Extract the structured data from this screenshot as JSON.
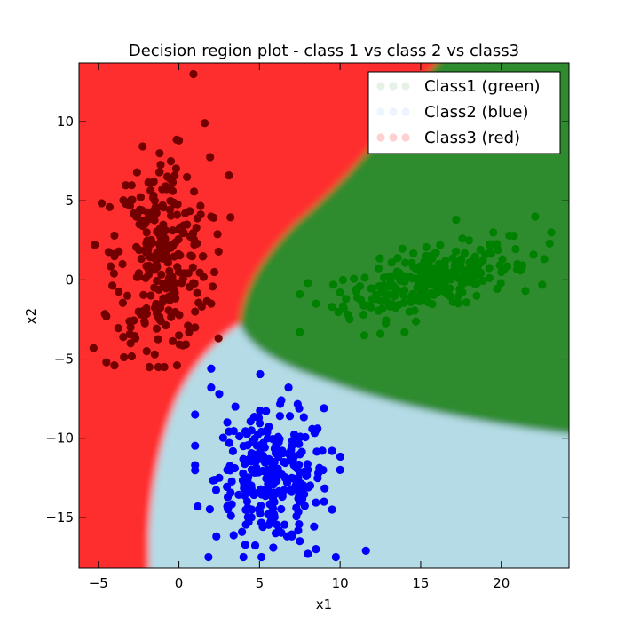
{
  "chart_data": {
    "type": "scatter",
    "title": "Decision region plot - class 1 vs class 2 vs class3",
    "xlabel": "x1",
    "ylabel": "x2",
    "xlim": [
      -6.2,
      24.2
    ],
    "ylim": [
      -18.2,
      13.7
    ],
    "xticks": [
      -5,
      0,
      5,
      10,
      15,
      20
    ],
    "yticks": [
      -15,
      -10,
      -5,
      0,
      5,
      10
    ],
    "xtick_labels": [
      "−5",
      "0",
      "5",
      "10",
      "15",
      "20"
    ],
    "ytick_labels": [
      "−15",
      "−10",
      "−5",
      "0",
      "5",
      "10"
    ],
    "grid": false,
    "legend_position": "top-right",
    "regions": [
      {
        "class": "Class1",
        "color": "#2e8b2e"
      },
      {
        "class": "Class2",
        "color": "#b4dbe6"
      },
      {
        "class": "Class3",
        "color": "#ff2f2f"
      }
    ],
    "series": [
      {
        "name": "Class1 (green)",
        "color": "#008000",
        "legend_marker_color": "#e6f2e6",
        "center": [
          15.5,
          0.0
        ],
        "x_range": [
          7.5,
          23.0
        ],
        "y_range": [
          -4.0,
          4.0
        ],
        "points": [
          [
            7.5,
            -3.3
          ],
          [
            8.0,
            -0.2
          ],
          [
            8.5,
            -1.5
          ],
          [
            9.5,
            -1.7
          ],
          [
            10.0,
            -0.8
          ],
          [
            10.5,
            -2.2
          ],
          [
            11.0,
            -0.6
          ],
          [
            11.5,
            -3.5
          ],
          [
            12.0,
            -1.2
          ],
          [
            12.5,
            -3.4
          ],
          [
            13.0,
            -0.4
          ],
          [
            13.2,
            1.1
          ],
          [
            14.0,
            -3.3
          ],
          [
            14.3,
            -2.0
          ],
          [
            14.5,
            -0.9
          ],
          [
            15.0,
            0.5
          ],
          [
            15.2,
            -1.2
          ],
          [
            15.5,
            1.5
          ],
          [
            15.8,
            0.2
          ],
          [
            16.0,
            -0.5
          ],
          [
            16.2,
            2.2
          ],
          [
            16.5,
            0.8
          ],
          [
            17.0,
            -1.4
          ],
          [
            17.2,
            3.8
          ],
          [
            17.5,
            1.2
          ],
          [
            17.8,
            0.0
          ],
          [
            18.0,
            2.5
          ],
          [
            18.5,
            -0.2
          ],
          [
            19.0,
            1.6
          ],
          [
            19.5,
            3.0
          ],
          [
            20.0,
            0.5
          ],
          [
            20.5,
            2.8
          ],
          [
            21.0,
            1.0
          ],
          [
            21.2,
            0.6
          ],
          [
            21.5,
            -0.7
          ],
          [
            22.0,
            1.6
          ],
          [
            22.1,
            4.0
          ],
          [
            23.0,
            2.3
          ],
          [
            23.1,
            3.0
          ]
        ]
      },
      {
        "name": "Class2 (blue)",
        "color": "#0000ff",
        "legend_marker_color": "#eef4ff",
        "center": [
          5.8,
          -12.5
        ],
        "x_range": [
          1.0,
          11.5
        ],
        "y_range": [
          -17.5,
          -5.5
        ],
        "points": [
          [
            2.0,
            -5.6
          ],
          [
            2.0,
            -6.8
          ],
          [
            1.0,
            -8.5
          ],
          [
            1.0,
            -11.7
          ],
          [
            2.5,
            -7.2
          ],
          [
            3.0,
            -9.0
          ],
          [
            3.5,
            -8.0
          ],
          [
            4.0,
            -10.5
          ],
          [
            4.5,
            -9.5
          ],
          [
            5.0,
            -11.0
          ],
          [
            5.5,
            -12.0
          ],
          [
            5.5,
            -10.0
          ],
          [
            6.0,
            -13.5
          ],
          [
            6.5,
            -11.5
          ],
          [
            7.0,
            -12.5
          ],
          [
            7.0,
            -10.5
          ],
          [
            6.8,
            -6.8
          ],
          [
            7.5,
            -14.0
          ],
          [
            8.0,
            -12.0
          ],
          [
            8.5,
            -9.5
          ],
          [
            9.0,
            -8.1
          ],
          [
            9.0,
            -14.0
          ],
          [
            9.5,
            -10.8
          ],
          [
            10.0,
            -12.0
          ],
          [
            7.5,
            -16.5
          ],
          [
            8.0,
            -17.3
          ],
          [
            8.5,
            -17.0
          ],
          [
            6.0,
            -16.0
          ],
          [
            7.0,
            -16.2
          ],
          [
            11.6,
            -17.1
          ],
          [
            3.0,
            -14.3
          ],
          [
            4.5,
            -15.0
          ],
          [
            2.5,
            -12.5
          ],
          [
            3.0,
            -12.0
          ],
          [
            5.2,
            -15.6
          ],
          [
            9.5,
            -14.5
          ]
        ]
      },
      {
        "name": "Class3 (red)",
        "color": "#730000",
        "legend_marker_color": "#ffd0d0",
        "center": [
          -1.0,
          1.5
        ],
        "x_range": [
          -5.5,
          3.2
        ],
        "y_range": [
          -5.5,
          13.0
        ],
        "points": [
          [
            0.9,
            13.0
          ],
          [
            1.6,
            9.9
          ],
          [
            0.0,
            8.8
          ],
          [
            -0.5,
            7.5
          ],
          [
            -2.6,
            6.8
          ],
          [
            3.1,
            6.6
          ],
          [
            -4.3,
            4.6
          ],
          [
            -4.0,
            2.8
          ],
          [
            -3.5,
            1.0
          ],
          [
            -3.2,
            -1.0
          ],
          [
            -3.0,
            -3.0
          ],
          [
            -2.5,
            -2.0
          ],
          [
            -2.0,
            3.0
          ],
          [
            -1.5,
            5.0
          ],
          [
            -1.0,
            2.0
          ],
          [
            -0.5,
            -1.0
          ],
          [
            0.0,
            0.5
          ],
          [
            0.5,
            3.5
          ],
          [
            1.0,
            -2.0
          ],
          [
            1.5,
            1.5
          ],
          [
            2.0,
            4.0
          ],
          [
            2.2,
            0.5
          ],
          [
            -5.3,
            -4.3
          ],
          [
            -4.5,
            -5.2
          ],
          [
            -4.0,
            -5.4
          ],
          [
            -3.0,
            -4.0
          ],
          [
            -2.0,
            -4.5
          ],
          [
            -1.5,
            -4.7
          ],
          [
            0.0,
            -3.5
          ],
          [
            1.0,
            -3.0
          ],
          [
            2.0,
            -1.5
          ],
          [
            -4.5,
            -2.3
          ],
          [
            -4.0,
            1.5
          ],
          [
            -2.8,
            4.2
          ],
          [
            -1.2,
            8.0
          ],
          [
            0.5,
            6.5
          ]
        ]
      }
    ]
  }
}
